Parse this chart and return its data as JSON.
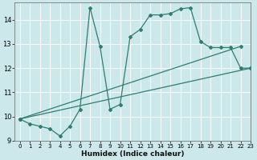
{
  "xlabel": "Humidex (Indice chaleur)",
  "xlim": [
    -0.5,
    23
  ],
  "ylim": [
    9,
    14.7
  ],
  "yticks": [
    9,
    10,
    11,
    12,
    13,
    14
  ],
  "xticks": [
    0,
    1,
    2,
    3,
    4,
    5,
    6,
    7,
    8,
    9,
    10,
    11,
    12,
    13,
    14,
    15,
    16,
    17,
    18,
    19,
    20,
    21,
    22,
    23
  ],
  "bg_color": "#cce8ea",
  "grid_color": "#ffffff",
  "line_color": "#2e7d6e",
  "line1_x": [
    0,
    1,
    2,
    3,
    4,
    5,
    6,
    7,
    8,
    9,
    10,
    11,
    12,
    13,
    14,
    15,
    16,
    17,
    18,
    19,
    20,
    21,
    22,
    23
  ],
  "line1_y": [
    9.9,
    9.7,
    9.6,
    9.5,
    9.2,
    9.6,
    10.3,
    14.5,
    12.9,
    10.3,
    10.5,
    13.3,
    13.6,
    14.2,
    14.2,
    14.25,
    14.45,
    14.5,
    13.1,
    12.85,
    12.85,
    12.85,
    12.0,
    12.0
  ],
  "line2_x": [
    0,
    23
  ],
  "line2_y": [
    9.9,
    12.0
  ],
  "line3_x": [
    0,
    22
  ],
  "line3_y": [
    9.9,
    12.9
  ],
  "linewidth": 0.9,
  "markersize": 2.0
}
